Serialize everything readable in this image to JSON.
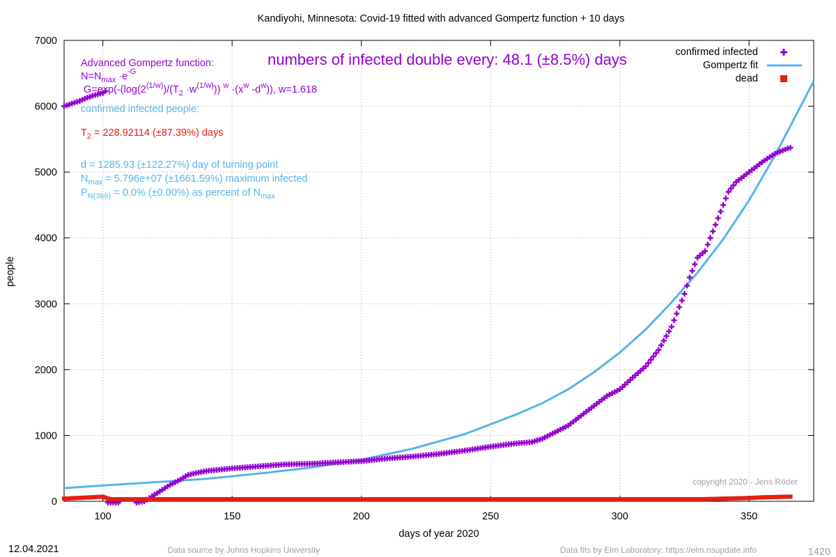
{
  "chart_data": {
    "type": "scatter",
    "title": "Kandiyohi,  Minnesota: Covid-19 fitted with advanced Gompertz function + 10 days",
    "xlabel": "days of year 2020",
    "ylabel": "people",
    "xlim": [
      85,
      375
    ],
    "ylim": [
      0,
      7000
    ],
    "x_ticks": [
      100,
      150,
      200,
      250,
      300,
      350
    ],
    "y_ticks": [
      0,
      1000,
      2000,
      3000,
      4000,
      5000,
      6000,
      7000
    ],
    "grid": true,
    "legend_position": "top-right",
    "legend": [
      {
        "label": "confirmed infected",
        "symbol": "+",
        "color": "#9400d3"
      },
      {
        "label": "Gompertz fit",
        "symbol": "line",
        "color": "#56b4e9"
      },
      {
        "label": "dead",
        "symbol": "square",
        "color": "#e51e10"
      }
    ],
    "colors": {
      "infected": "#9400d3",
      "fit": "#56b4e9",
      "dead": "#e51e10",
      "t2": "#e51e10"
    },
    "annotations": {
      "doubling": "numbers of infected double every: 48.1 (±8.5%) days",
      "formula_title": "Advanced Gompertz function:",
      "formula_n_pre": "N=N",
      "formula_n_sub": "max",
      "formula_n_post": " ·e",
      "formula_n_sup": "-G",
      "formula_g_1": "G=exp(-(log(2",
      "formula_g_sup1": "(1/w)",
      "formula_g_2": ")/(T",
      "formula_g_sub2": "2",
      "formula_g_3": " ·w",
      "formula_g_sup3": "(1/w)",
      "formula_g_4": ")) ",
      "formula_g_sup4": "w",
      "formula_g_5": " ·(x",
      "formula_g_sup5": "w",
      "formula_g_6": " -d",
      "formula_g_sup6": "w",
      "formula_g_7": ")), w=1.618",
      "confirmed_label": "confirmed infected people:",
      "t2_pre": "T",
      "t2_sub": "2",
      "t2_post": " = 228.92114 (±87.39%) days",
      "d_line": "d = 1285.93 (±122.27%) day of turning point",
      "nmax_pre": "N",
      "nmax_sub": "max",
      "nmax_post": " = 5.796e+07 (±1661.59%) maximum infected",
      "p_pre": "P",
      "p_sub": "N(366)",
      "p_mid": " = 0.0% (±0.00%) as percent of N",
      "p_sub2": "max",
      "copyright": "copyright 2020 - Jens Röder"
    },
    "series": [
      {
        "name": "confirmed infected",
        "marker": "+",
        "x": [
          85,
          88,
          91,
          94,
          97,
          100,
          101,
          106,
          110,
          113,
          116,
          118,
          120,
          122,
          124,
          126,
          128,
          130,
          132,
          133,
          134,
          136,
          140,
          145,
          150,
          160,
          170,
          180,
          190,
          200,
          210,
          220,
          230,
          240,
          250,
          260,
          266,
          270,
          275,
          280,
          285,
          290,
          295,
          300,
          305,
          310,
          315,
          320,
          323,
          325,
          327,
          330,
          333,
          335,
          337,
          340,
          342,
          345,
          350,
          355,
          360,
          365,
          366
        ],
        "y": [
          6000,
          6040,
          6080,
          6130,
          6170,
          6200,
          6230,
          -20,
          -25,
          -20,
          0,
          50,
          100,
          150,
          200,
          250,
          290,
          330,
          380,
          400,
          410,
          430,
          460,
          480,
          500,
          530,
          560,
          570,
          590,
          610,
          650,
          680,
          720,
          770,
          830,
          880,
          900,
          950,
          1050,
          1150,
          1300,
          1450,
          1600,
          1700,
          1880,
          2050,
          2300,
          2650,
          2950,
          3150,
          3400,
          3700,
          3800,
          4000,
          4200,
          4500,
          4700,
          4850,
          5000,
          5150,
          5280,
          5360,
          5370
        ]
      },
      {
        "name": "Gompertz fit",
        "line": true,
        "x": [
          85,
          100,
          120,
          140,
          160,
          180,
          200,
          220,
          240,
          250,
          260,
          270,
          280,
          290,
          300,
          310,
          320,
          330,
          340,
          350,
          360,
          375
        ],
        "y": [
          200,
          240,
          290,
          340,
          420,
          510,
          630,
          800,
          1020,
          1170,
          1320,
          1490,
          1700,
          1960,
          2260,
          2610,
          3020,
          3470,
          3980,
          4570,
          5250,
          6380
        ]
      },
      {
        "name": "dead",
        "marker": "square",
        "x": [
          85,
          90,
          95,
          100,
          105,
          150,
          200,
          250,
          300,
          310,
          320,
          330,
          340,
          350,
          355,
          360,
          366
        ],
        "y": [
          40,
          50,
          60,
          70,
          0,
          0,
          0,
          0,
          0,
          10,
          20,
          30,
          40,
          50,
          60,
          65,
          70
        ]
      }
    ]
  },
  "footer": {
    "date": "12.04.2021",
    "source": "Data source by Johns Hopkins University",
    "fits": "Data fits by Elm Laboratory: https://elm.nsupdate.info",
    "page_number": "1420"
  }
}
